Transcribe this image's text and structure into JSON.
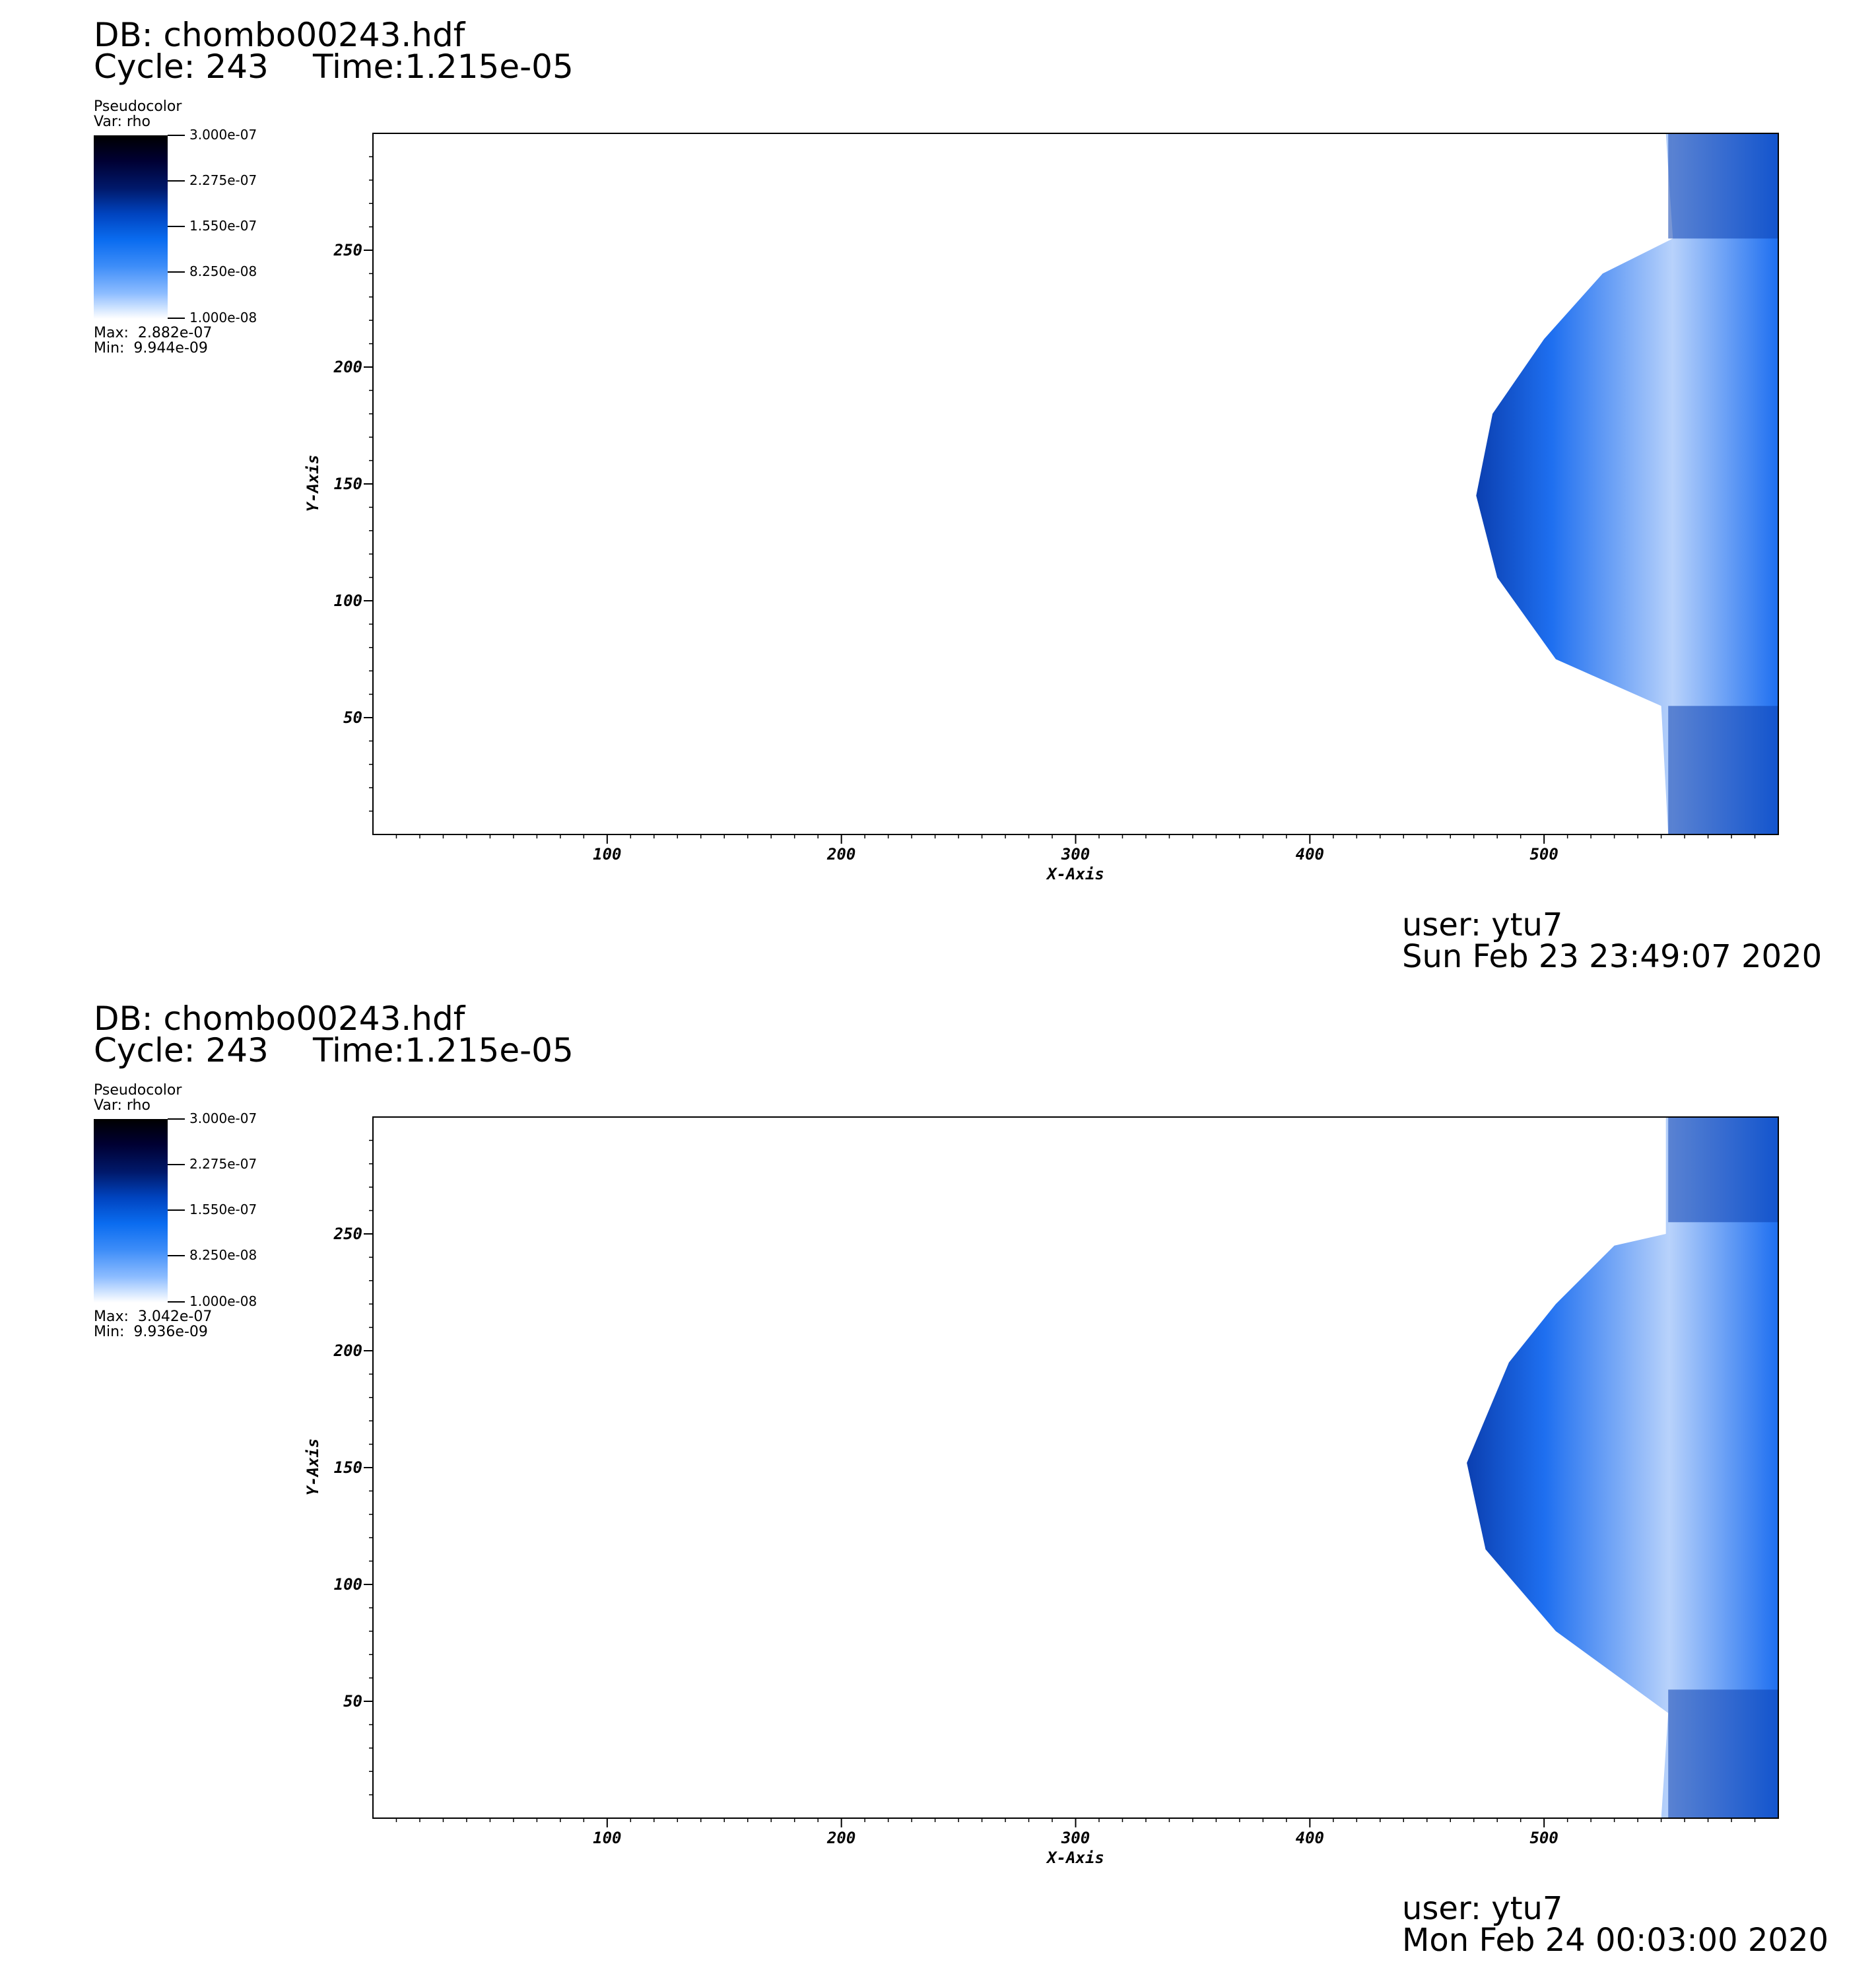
{
  "panels": [
    {
      "db": "DB: chombo00243.hdf",
      "cycle": "Cycle: 243",
      "time": "Time:1.215e-05",
      "legend": {
        "title": "Pseudocolor",
        "var": "Var: rho",
        "ticks": [
          "3.000e-07",
          "2.275e-07",
          "1.550e-07",
          "8.250e-08",
          "1.000e-08"
        ],
        "max": "Max:  2.882e-07",
        "min": "Min:  9.944e-09"
      },
      "user": "user: ytu7",
      "date": "Sun Feb 23 23:49:07 2020"
    },
    {
      "db": "DB: chombo00243.hdf",
      "cycle": "Cycle: 243",
      "time": "Time:1.215e-05",
      "legend": {
        "title": "Pseudocolor",
        "var": "Var: rho",
        "ticks": [
          "3.000e-07",
          "2.275e-07",
          "1.550e-07",
          "8.250e-08",
          "1.000e-08"
        ],
        "max": "Max:  3.042e-07",
        "min": "Min:  9.936e-09"
      },
      "user": "user: ytu7",
      "date": "Mon Feb 24 00:03:00 2020"
    }
  ],
  "colors": {
    "colormap": [
      "#000000",
      "#000033",
      "#00196b",
      "#0044c0",
      "#0a6cf0",
      "#3c8cf8",
      "#8cbcff",
      "#ffffff"
    ],
    "region_dark": "#0b3fb0",
    "region_mid": "#1e6ff0",
    "region_light": "#b8d2fb"
  },
  "chart_data": [
    {
      "type": "heatmap",
      "title": "",
      "xlabel": "X-Axis",
      "ylabel": "Y-Axis",
      "xlim": [
        0,
        600
      ],
      "ylim": [
        0,
        300
      ],
      "xticks": [
        100,
        200,
        300,
        400,
        500
      ],
      "yticks": [
        50,
        100,
        150,
        200,
        250
      ],
      "variable": "rho",
      "colorbar_range": [
        1e-08,
        3e-07
      ],
      "data_max": 2.882e-07,
      "data_min": 9.944e-09,
      "shock_front_outline": [
        [
          600,
          300
        ],
        [
          552,
          300
        ],
        [
          555,
          255
        ],
        [
          525,
          240
        ],
        [
          500,
          212
        ],
        [
          478,
          180
        ],
        [
          471,
          145
        ],
        [
          480,
          110
        ],
        [
          505,
          75
        ],
        [
          550,
          55
        ],
        [
          553,
          0
        ],
        [
          600,
          0
        ]
      ]
    },
    {
      "type": "heatmap",
      "title": "",
      "xlabel": "X-Axis",
      "ylabel": "Y-Axis",
      "xlim": [
        0,
        600
      ],
      "ylim": [
        0,
        300
      ],
      "xticks": [
        100,
        200,
        300,
        400,
        500
      ],
      "yticks": [
        50,
        100,
        150,
        200,
        250
      ],
      "variable": "rho",
      "colorbar_range": [
        1e-08,
        3e-07
      ],
      "data_max": 3.042e-07,
      "data_min": 9.936e-09,
      "shock_front_outline": [
        [
          600,
          300
        ],
        [
          552,
          300
        ],
        [
          552,
          250
        ],
        [
          530,
          245
        ],
        [
          505,
          220
        ],
        [
          485,
          195
        ],
        [
          467,
          152
        ],
        [
          475,
          115
        ],
        [
          505,
          80
        ],
        [
          553,
          45
        ],
        [
          550,
          0
        ],
        [
          600,
          0
        ]
      ]
    }
  ]
}
